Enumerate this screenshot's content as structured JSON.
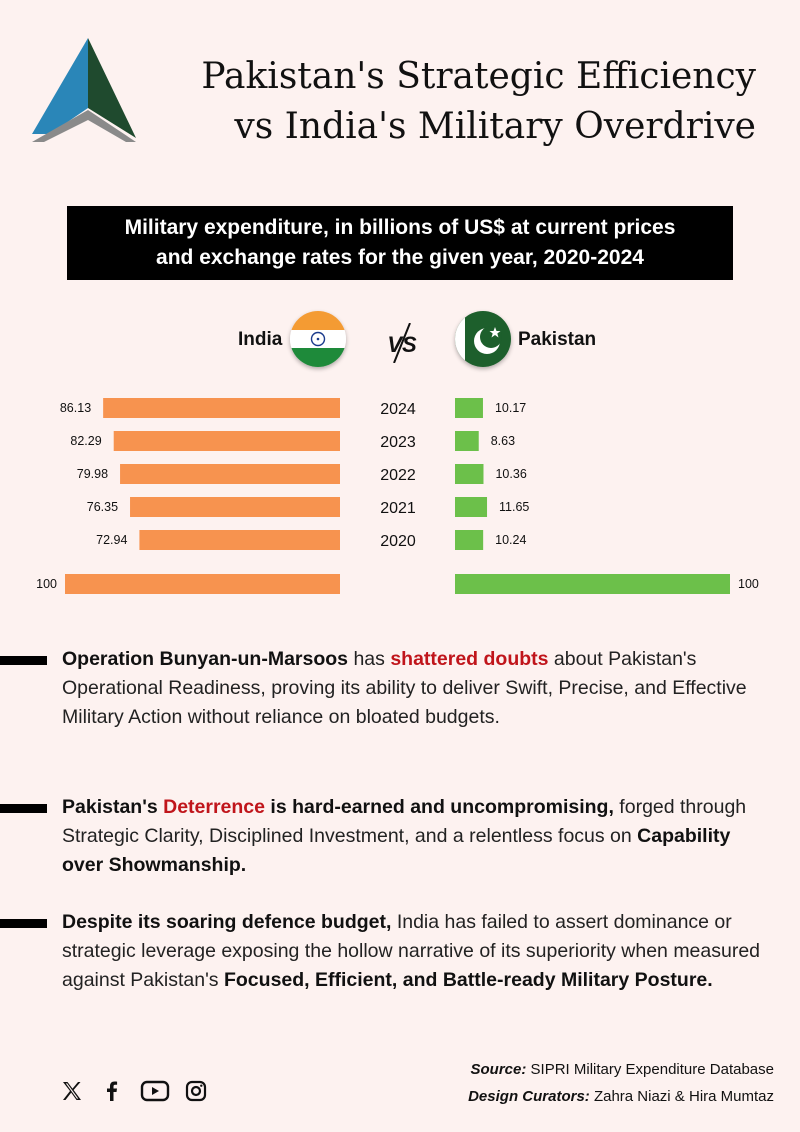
{
  "title": {
    "line1": "Pakistan's Strategic Efficiency",
    "line2": "vs India's Military Overdrive"
  },
  "banner": {
    "line1": "Military expenditure, in billions of US$ at current prices",
    "line2": "and exchange rates for the given year,  2020-2024"
  },
  "labels": {
    "india": "India",
    "pakistan": "Pakistan",
    "vs": "VS"
  },
  "chart_data": {
    "type": "bar",
    "categories": [
      "2024",
      "2023",
      "2022",
      "2021",
      "2020"
    ],
    "series": [
      {
        "name": "India",
        "values": [
          86.13,
          82.29,
          79.98,
          76.35,
          72.94
        ],
        "color": "#f7934f"
      },
      {
        "name": "Pakistan",
        "values": [
          10.17,
          8.63,
          10.36,
          11.65,
          10.24
        ],
        "color": "#6cc04a"
      }
    ],
    "reference": {
      "india": 100,
      "pakistan": 100
    },
    "title": "Military expenditure, in billions of US$ at current prices and exchange rates for the given year,  2020-2024"
  },
  "bullets": [
    {
      "parts": [
        {
          "t": "Operation Bunyan-un-Marsoos",
          "s": "b"
        },
        {
          "t": " has ",
          "s": ""
        },
        {
          "t": "shattered doubts",
          "s": "red"
        },
        {
          "t": " about Pakistan's Operational Readiness, proving its ability to deliver Swift, Precise, and Effective Military Action without reliance on bloated budgets.",
          "s": ""
        }
      ]
    },
    {
      "parts": [
        {
          "t": "Pakistan's ",
          "s": "b"
        },
        {
          "t": "Deterrence",
          "s": "red"
        },
        {
          "t": " is hard-earned and uncompromising,",
          "s": "b"
        },
        {
          "t": " forged through Strategic Clarity, Disciplined Investment, and a relentless focus on ",
          "s": ""
        },
        {
          "t": "Capability over Showmanship.",
          "s": "b"
        }
      ]
    },
    {
      "parts": [
        {
          "t": "Despite its soaring defence budget,",
          "s": "b"
        },
        {
          "t": " India has failed to assert dominance or strategic leverage exposing the hollow narrative of its superiority when measured against Pakistan's ",
          "s": ""
        },
        {
          "t": "Focused, Efficient, and Battle-ready Military Posture.",
          "s": "b"
        }
      ]
    }
  ],
  "footer": {
    "source_label": "Source:",
    "source_value": " SIPRI Military Expenditure Database",
    "curators_label": "Design Curators:",
    "curators_value": " Zahra Niazi & Hira Mumtaz"
  },
  "social_icons": [
    "x-icon",
    "facebook-icon",
    "youtube-icon",
    "instagram-icon"
  ],
  "colors": {
    "india_bar": "#f7934f",
    "pakistan_bar": "#6cc04a",
    "accent_red": "#c0151b"
  }
}
